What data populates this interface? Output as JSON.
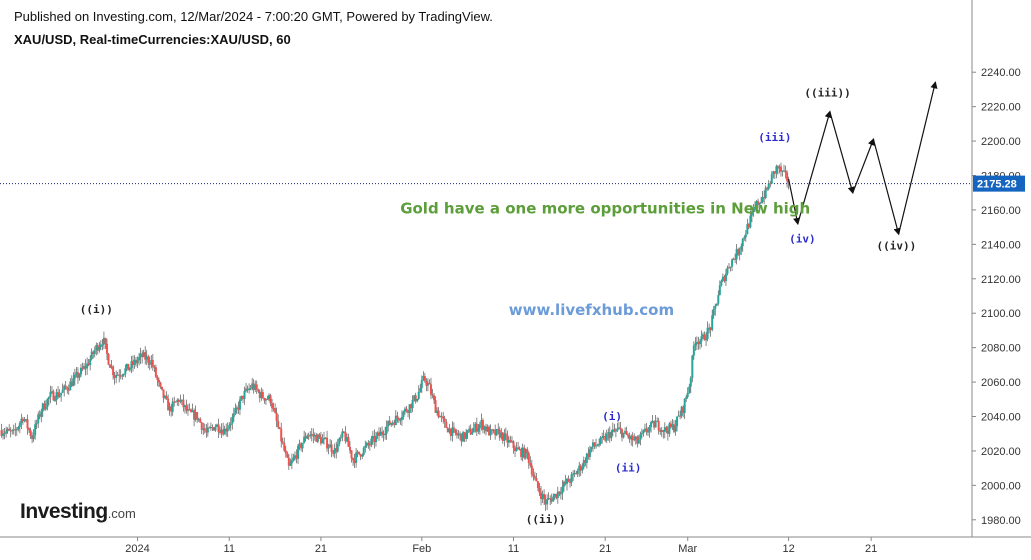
{
  "header": {
    "published": "Published on Investing.com, 12/Mar/2024 - 7:00:20 GMT, Powered by TradingView.",
    "symbol": "XAU/USD, Real-timeCurrencies:XAU/USD, 60"
  },
  "branding": {
    "logo_main": "Investing",
    "logo_suffix": ".com"
  },
  "colors": {
    "up": "#26a69a",
    "down": "#ef5350",
    "wick": "#555555",
    "price_line": "#1a237e",
    "price_badge": "#1565c0",
    "annotation_green": "#5c9e3a",
    "annotation_blue_text": "#6b9bd8",
    "wave_blue": "#2a2acf",
    "wave_black": "#222222",
    "projection": "#111111",
    "grid": "#d8d8d8",
    "axis_text": "#333333"
  },
  "chart_data": {
    "type": "candlestick",
    "y_axis": {
      "min": 1970,
      "max": 2250,
      "ticks": [
        1980,
        2000,
        2020,
        2040,
        2060,
        2080,
        2100,
        2120,
        2140,
        2160,
        2180,
        2200,
        2220,
        2240
      ],
      "tick_labels": [
        "1980.00",
        "2000.00",
        "2020.00",
        "2040.00",
        "2060.00",
        "2080.00",
        "2100.00",
        "2120.00",
        "2140.00",
        "2160.00",
        "2180.00",
        "2200.00",
        "2220.00",
        "2240.00"
      ]
    },
    "x_axis": {
      "labels": [
        {
          "date": "2024-01-01",
          "label": "2024"
        },
        {
          "date": "2024-01-11",
          "label": "11"
        },
        {
          "date": "2024-01-21",
          "label": "21"
        },
        {
          "date": "2024-02-01",
          "label": "Feb"
        },
        {
          "date": "2024-02-11",
          "label": "11"
        },
        {
          "date": "2024-02-21",
          "label": "21"
        },
        {
          "date": "2024-03-01",
          "label": "Mar"
        },
        {
          "date": "2024-03-12",
          "label": "12"
        },
        {
          "date": "2024-03-21",
          "label": "21"
        }
      ],
      "range": [
        "2023-12-17",
        "2024-04-01"
      ]
    },
    "last_price": 2175.28,
    "last_price_label": "2175.28",
    "price_path": [
      [
        "2023-12-17T00:00",
        2032
      ],
      [
        "2023-12-18T12:00",
        2030
      ],
      [
        "2023-12-19T12:00",
        2040
      ],
      [
        "2023-12-20T12:00",
        2028
      ],
      [
        "2023-12-21T12:00",
        2044
      ],
      [
        "2023-12-22T12:00",
        2052
      ],
      [
        "2023-12-23T12:00",
        2053
      ],
      [
        "2023-12-24T12:00",
        2058
      ],
      [
        "2023-12-25T12:00",
        2064
      ],
      [
        "2023-12-26T12:00",
        2070
      ],
      [
        "2023-12-27T12:00",
        2080
      ],
      [
        "2023-12-28T06:00",
        2085
      ],
      [
        "2023-12-28T18:00",
        2074
      ],
      [
        "2023-12-29T12:00",
        2064
      ],
      [
        "2023-12-31T00:00",
        2068
      ],
      [
        "2024-01-01T12:00",
        2075
      ],
      [
        "2024-01-02T12:00",
        2072
      ],
      [
        "2024-01-03T12:00",
        2055
      ],
      [
        "2024-01-04T12:00",
        2044
      ],
      [
        "2024-01-05T12:00",
        2050
      ],
      [
        "2024-01-06T12:00",
        2042
      ],
      [
        "2024-01-07T12:00",
        2040
      ],
      [
        "2024-01-08T12:00",
        2030
      ],
      [
        "2024-01-09T12:00",
        2035
      ],
      [
        "2024-01-10T12:00",
        2032
      ],
      [
        "2024-01-11T12:00",
        2040
      ],
      [
        "2024-01-12T12:00",
        2052
      ],
      [
        "2024-01-13T12:00",
        2058
      ],
      [
        "2024-01-14T12:00",
        2052
      ],
      [
        "2024-01-15T12:00",
        2050
      ],
      [
        "2024-01-16T12:00",
        2030
      ],
      [
        "2024-01-17T12:00",
        2010
      ],
      [
        "2024-01-18T12:00",
        2020
      ],
      [
        "2024-01-19T12:00",
        2030
      ],
      [
        "2024-01-20T12:00",
        2028
      ],
      [
        "2024-01-21T12:00",
        2025
      ],
      [
        "2024-01-22T12:00",
        2020
      ],
      [
        "2024-01-23T12:00",
        2030
      ],
      [
        "2024-01-24T12:00",
        2015
      ],
      [
        "2024-01-25T12:00",
        2020
      ],
      [
        "2024-01-26T12:00",
        2025
      ],
      [
        "2024-01-27T12:00",
        2030
      ],
      [
        "2024-01-28T12:00",
        2036
      ],
      [
        "2024-01-29T12:00",
        2040
      ],
      [
        "2024-01-30T12:00",
        2045
      ],
      [
        "2024-01-31T12:00",
        2052
      ],
      [
        "2024-02-01T06:00",
        2062
      ],
      [
        "2024-02-01T18:00",
        2058
      ],
      [
        "2024-02-02T12:00",
        2045
      ],
      [
        "2024-02-03T12:00",
        2035
      ],
      [
        "2024-02-04T12:00",
        2030
      ],
      [
        "2024-02-05T12:00",
        2028
      ],
      [
        "2024-02-06T12:00",
        2032
      ],
      [
        "2024-02-07T12:00",
        2036
      ],
      [
        "2024-02-08T12:00",
        2030
      ],
      [
        "2024-02-09T12:00",
        2030
      ],
      [
        "2024-02-10T12:00",
        2025
      ],
      [
        "2024-02-11T12:00",
        2020
      ],
      [
        "2024-02-12T12:00",
        2018
      ],
      [
        "2024-02-13T12:00",
        2000
      ],
      [
        "2024-02-14T12:00",
        1990
      ],
      [
        "2024-02-15T12:00",
        1994
      ],
      [
        "2024-02-16T12:00",
        2000
      ],
      [
        "2024-02-17T12:00",
        2005
      ],
      [
        "2024-02-18T12:00",
        2012
      ],
      [
        "2024-02-19T12:00",
        2022
      ],
      [
        "2024-02-20T12:00",
        2025
      ],
      [
        "2024-02-21T12:00",
        2030
      ],
      [
        "2024-02-22T12:00",
        2032
      ],
      [
        "2024-02-23T12:00",
        2028
      ],
      [
        "2024-02-24T12:00",
        2025
      ],
      [
        "2024-02-25T12:00",
        2032
      ],
      [
        "2024-02-26T12:00",
        2036
      ],
      [
        "2024-02-27T12:00",
        2032
      ],
      [
        "2024-02-28T12:00",
        2034
      ],
      [
        "2024-02-29T12:00",
        2045
      ],
      [
        "2024-03-01T06:00",
        2060
      ],
      [
        "2024-03-01T18:00",
        2085
      ],
      [
        "2024-03-02T12:00",
        2084
      ],
      [
        "2024-03-03T12:00",
        2092
      ],
      [
        "2024-03-04T12:00",
        2115
      ],
      [
        "2024-03-05T12:00",
        2128
      ],
      [
        "2024-03-06T12:00",
        2136
      ],
      [
        "2024-03-07T12:00",
        2150
      ],
      [
        "2024-03-08T12:00",
        2163
      ],
      [
        "2024-03-09T12:00",
        2170
      ],
      [
        "2024-03-10T06:00",
        2180
      ],
      [
        "2024-03-10T18:00",
        2185
      ],
      [
        "2024-03-11T12:00",
        2180
      ],
      [
        "2024-03-12T00:00",
        2177
      ]
    ],
    "wave_labels": [
      {
        "text": "((i))",
        "date": "2023-12-27T12:00",
        "price": 2100,
        "style": "black"
      },
      {
        "text": "((ii))",
        "date": "2024-02-14T12:00",
        "price": 1978,
        "style": "black"
      },
      {
        "text": "(i)",
        "date": "2024-02-21T18:00",
        "price": 2038,
        "style": "blue"
      },
      {
        "text": "(ii)",
        "date": "2024-02-23T12:00",
        "price": 2008,
        "style": "blue"
      },
      {
        "text": "(iii)",
        "date": "2024-03-10T12:00",
        "price": 2200,
        "style": "blue"
      },
      {
        "text": "(iv)",
        "date": "2024-03-13T12:00",
        "price": 2141,
        "style": "blue"
      },
      {
        "text": "((iii))",
        "date": "2024-03-16T06:00",
        "price": 2226,
        "style": "black"
      },
      {
        "text": "((iv))",
        "date": "2024-03-23T18:00",
        "price": 2137,
        "style": "black"
      }
    ],
    "projection_path": [
      [
        "2024-03-12T00:00",
        2178
      ],
      [
        "2024-03-13T00:00",
        2152
      ],
      [
        "2024-03-16T12:00",
        2217
      ],
      [
        "2024-03-19T00:00",
        2170
      ],
      [
        "2024-03-21T06:00",
        2201
      ],
      [
        "2024-03-24T00:00",
        2146
      ],
      [
        "2024-03-28T00:00",
        2234
      ]
    ],
    "annotations": [
      {
        "text": "Gold have a one more opportunities in New high",
        "date": "2024-02-21T00:00",
        "price": 2158,
        "style": "green"
      },
      {
        "text": "www.livefxhub.com",
        "date": "2024-02-19T12:00",
        "price": 2099,
        "style": "blue"
      }
    ]
  }
}
